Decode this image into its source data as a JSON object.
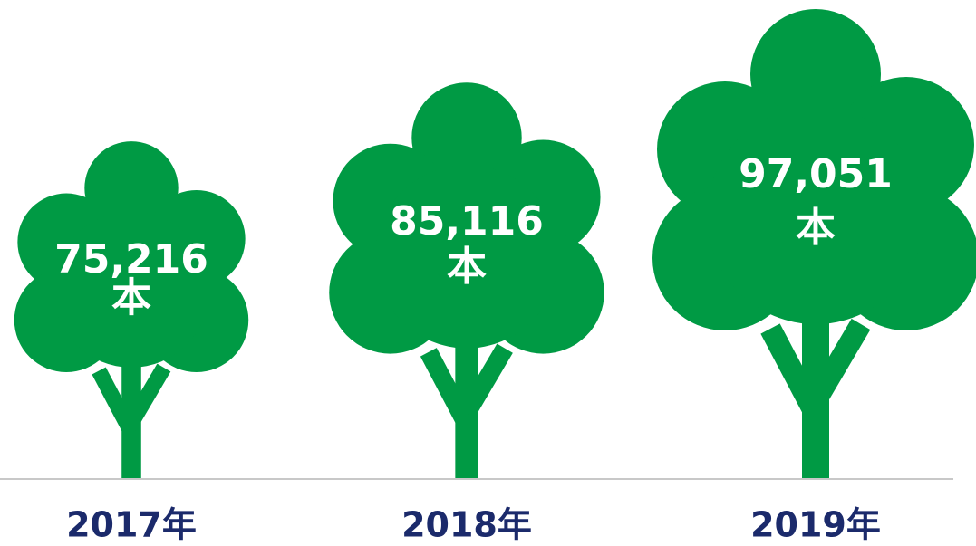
{
  "chart_data": {
    "type": "pictogram",
    "categories": [
      "2017年",
      "2018年",
      "2019年"
    ],
    "values": [
      75216,
      85116,
      97051
    ],
    "value_labels": [
      "75,216",
      "85,116",
      "97,051"
    ],
    "unit": "本",
    "color": "#009a44"
  }
}
